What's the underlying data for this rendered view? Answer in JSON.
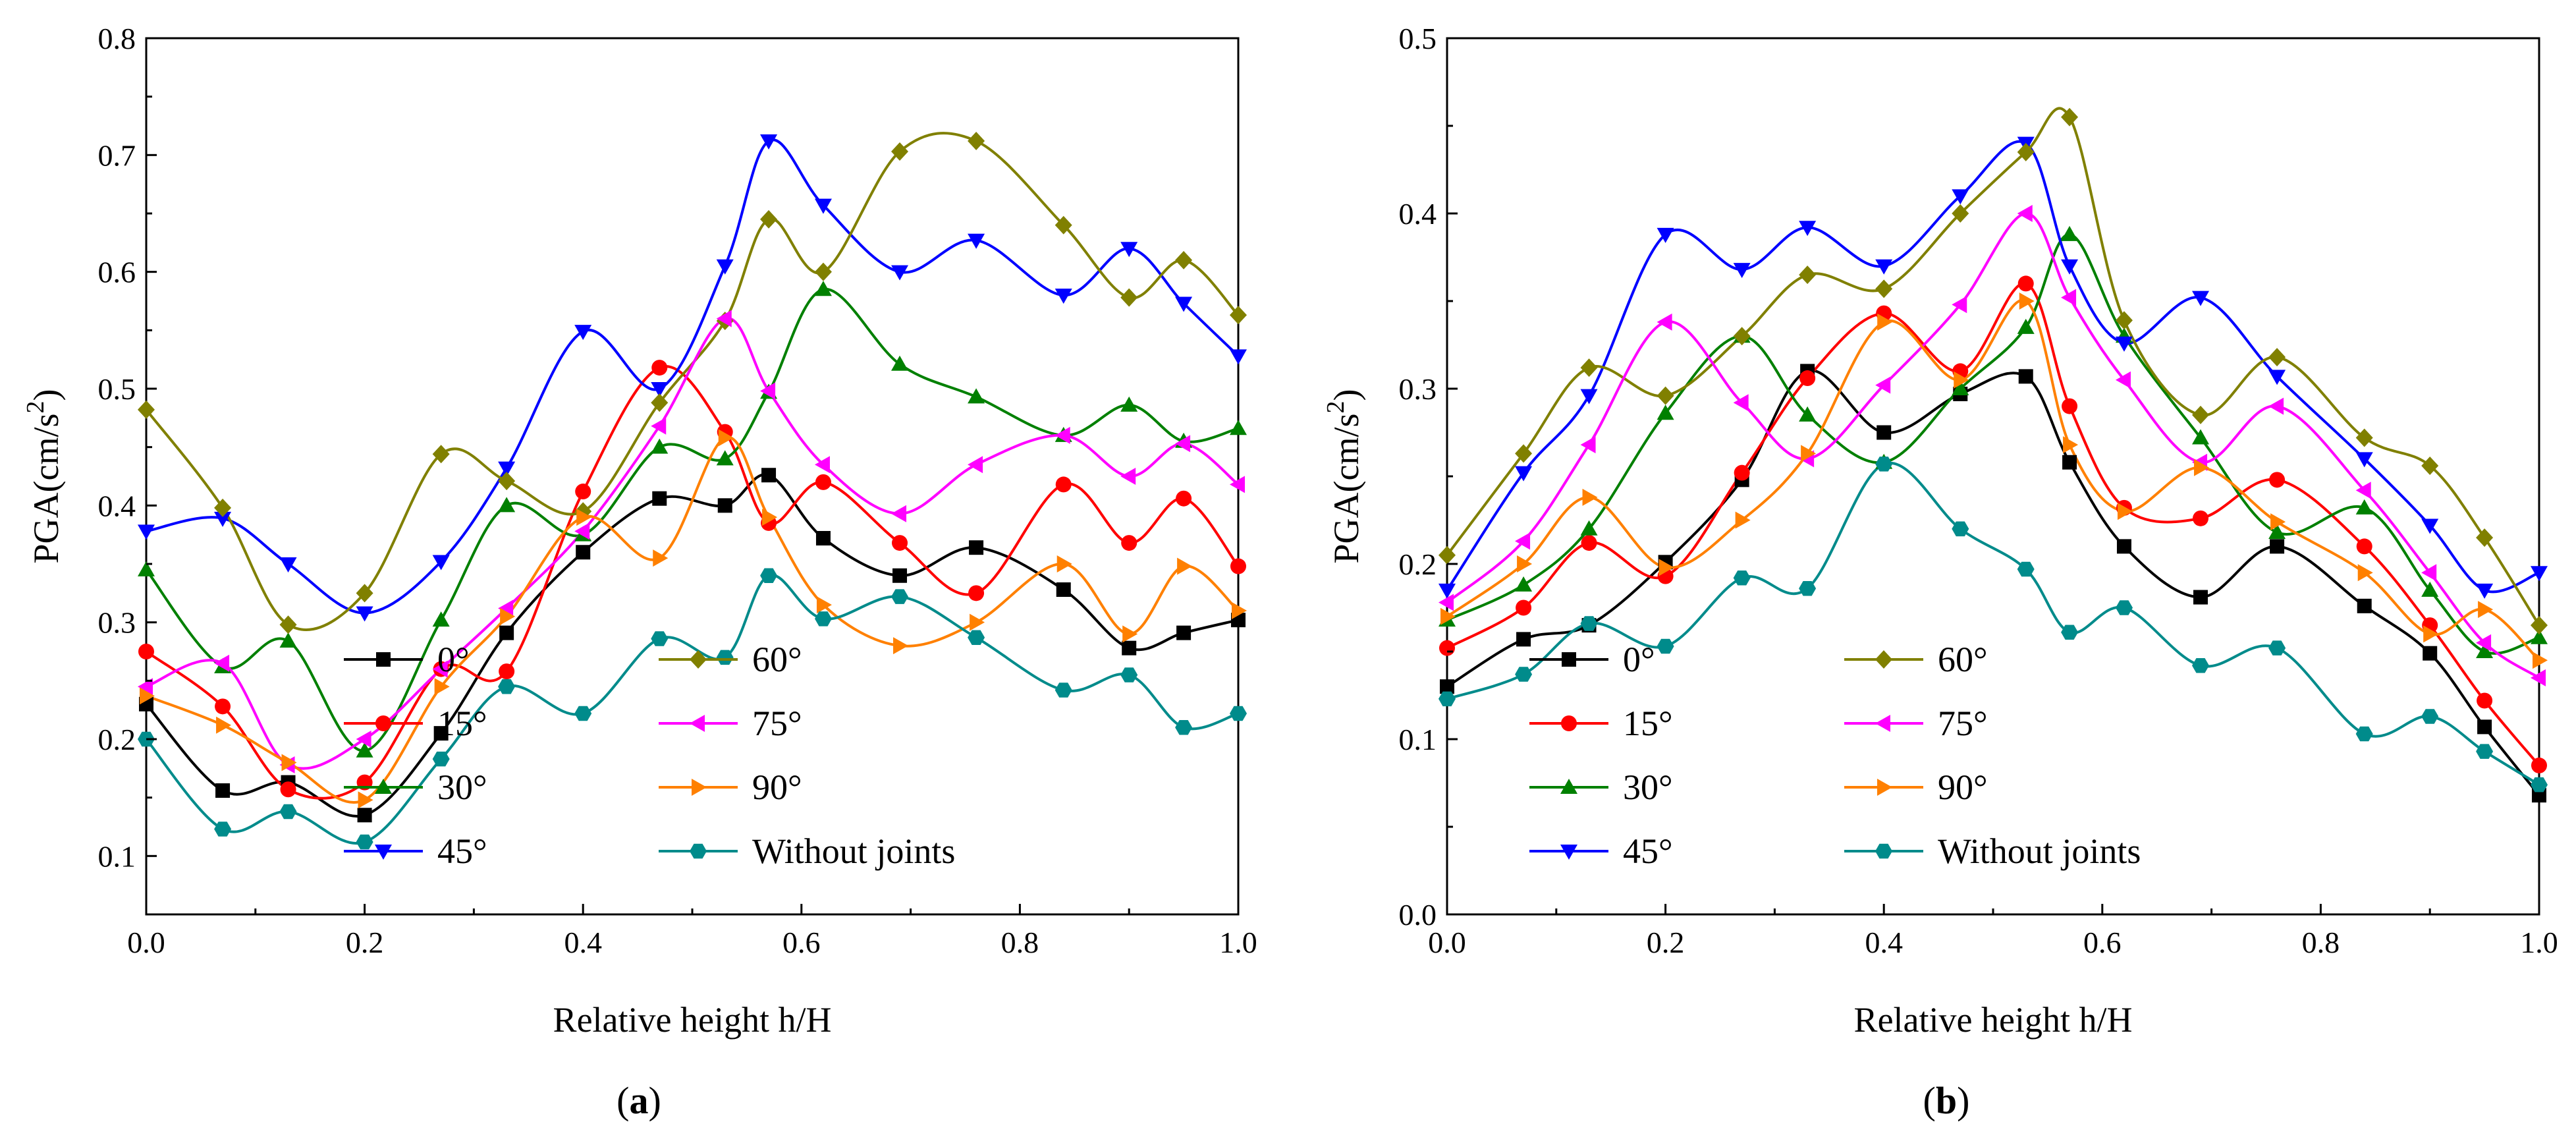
{
  "figure": {
    "panels": [
      {
        "label_prefix": "(",
        "label_letter": "a",
        "label_suffix": ")"
      },
      {
        "label_prefix": "(",
        "label_letter": "b",
        "label_suffix": ")"
      }
    ],
    "ylabel_base": "PGA(cm/s",
    "ylabel_exp": "2",
    "ylabel_close": ")"
  },
  "chart_data": [
    {
      "type": "line",
      "title": "",
      "xlabel": "Relative height h/H",
      "ylabel": "PGA(cm/s2)",
      "xlim": [
        0.0,
        1.0
      ],
      "ylim": [
        0.05,
        0.8
      ],
      "xticks": [
        "0.0",
        "0.2",
        "0.4",
        "0.6",
        "0.8",
        "1.0"
      ],
      "yticks": [
        "0.1",
        "0.2",
        "0.3",
        "0.4",
        "0.5",
        "0.6",
        "0.7",
        "0.8"
      ],
      "legend_position": "bottom-center",
      "x": [
        0.0,
        0.07,
        0.13,
        0.2,
        0.27,
        0.33,
        0.4,
        0.47,
        0.53,
        0.57,
        0.62,
        0.69,
        0.76,
        0.84,
        0.9,
        0.95,
        1.0
      ],
      "series": [
        {
          "name": "0°",
          "color": "#000000",
          "marker": "square",
          "values": [
            0.23,
            0.156,
            0.163,
            0.135,
            0.205,
            0.291,
            0.36,
            0.406,
            0.4,
            0.426,
            0.372,
            0.34,
            0.364,
            0.328,
            0.278,
            0.291,
            0.302
          ]
        },
        {
          "name": "15°",
          "color": "#ff0000",
          "marker": "circle",
          "values": [
            0.275,
            0.228,
            0.157,
            0.163,
            0.26,
            0.258,
            0.412,
            0.518,
            0.463,
            0.385,
            0.42,
            0.368,
            0.325,
            0.418,
            0.368,
            0.406,
            0.348
          ]
        },
        {
          "name": "30°",
          "color": "#008000",
          "marker": "triangle-up",
          "values": [
            0.345,
            0.262,
            0.284,
            0.19,
            0.302,
            0.4,
            0.375,
            0.45,
            0.44,
            0.497,
            0.585,
            0.521,
            0.493,
            0.46,
            0.486,
            0.455,
            0.466
          ]
        },
        {
          "name": "45°",
          "color": "#0000ff",
          "marker": "triangle-down",
          "values": [
            0.378,
            0.389,
            0.35,
            0.308,
            0.352,
            0.432,
            0.549,
            0.5,
            0.605,
            0.712,
            0.657,
            0.6,
            0.627,
            0.58,
            0.62,
            0.573,
            0.528
          ]
        },
        {
          "name": "60°",
          "color": "#808000",
          "marker": "diamond",
          "values": [
            0.482,
            0.398,
            0.298,
            0.325,
            0.444,
            0.421,
            0.395,
            0.488,
            0.558,
            0.645,
            0.6,
            0.703,
            0.712,
            0.64,
            0.578,
            0.61,
            0.563
          ]
        },
        {
          "name": "75°",
          "color": "#ff00ff",
          "marker": "triangle-left",
          "values": [
            0.245,
            0.265,
            0.178,
            0.2,
            0.26,
            0.312,
            0.378,
            0.468,
            0.56,
            0.498,
            0.435,
            0.393,
            0.435,
            0.46,
            0.425,
            0.453,
            0.418
          ]
        },
        {
          "name": "90°",
          "color": "#ff8000",
          "marker": "triangle-right",
          "values": [
            0.237,
            0.212,
            0.18,
            0.148,
            0.245,
            0.305,
            0.39,
            0.355,
            0.458,
            0.39,
            0.315,
            0.28,
            0.3,
            0.35,
            0.29,
            0.348,
            0.31
          ]
        },
        {
          "name": "Without joints",
          "color": "#008b8b",
          "marker": "hexagon",
          "values": [
            0.2,
            0.123,
            0.138,
            0.112,
            0.183,
            0.245,
            0.222,
            0.286,
            0.27,
            0.34,
            0.303,
            0.322,
            0.287,
            0.242,
            0.255,
            0.21,
            0.222
          ]
        }
      ]
    },
    {
      "type": "line",
      "title": "",
      "xlabel": "Relative height h/H",
      "ylabel": "PGA(cm/s2)",
      "xlim": [
        0.0,
        1.0
      ],
      "ylim": [
        0.0,
        0.5
      ],
      "xticks": [
        "0.0",
        "0.2",
        "0.4",
        "0.6",
        "0.8",
        "1.0"
      ],
      "yticks": [
        "0.0",
        "0.1",
        "0.2",
        "0.3",
        "0.4",
        "0.5"
      ],
      "legend_position": "bottom-left",
      "x": [
        0.0,
        0.07,
        0.13,
        0.2,
        0.27,
        0.33,
        0.4,
        0.47,
        0.53,
        0.57,
        0.62,
        0.69,
        0.76,
        0.84,
        0.9,
        0.95,
        1.0
      ],
      "series": [
        {
          "name": "0°",
          "color": "#000000",
          "marker": "square",
          "values": [
            0.13,
            0.157,
            0.165,
            0.201,
            0.248,
            0.31,
            0.275,
            0.297,
            0.307,
            0.258,
            0.21,
            0.181,
            0.21,
            0.176,
            0.149,
            0.107,
            0.068
          ]
        },
        {
          "name": "15°",
          "color": "#ff0000",
          "marker": "circle",
          "values": [
            0.152,
            0.175,
            0.212,
            0.193,
            0.252,
            0.306,
            0.343,
            0.31,
            0.36,
            0.29,
            0.232,
            0.226,
            0.248,
            0.21,
            0.165,
            0.122,
            0.085
          ]
        },
        {
          "name": "30°",
          "color": "#008000",
          "marker": "triangle-up",
          "values": [
            0.168,
            0.188,
            0.22,
            0.286,
            0.33,
            0.285,
            0.258,
            0.3,
            0.335,
            0.388,
            0.33,
            0.272,
            0.218,
            0.232,
            0.185,
            0.15,
            0.158
          ]
        },
        {
          "name": "45°",
          "color": "#0000ff",
          "marker": "triangle-down",
          "values": [
            0.185,
            0.252,
            0.296,
            0.388,
            0.368,
            0.392,
            0.37,
            0.41,
            0.44,
            0.37,
            0.326,
            0.352,
            0.307,
            0.26,
            0.222,
            0.185,
            0.195
          ]
        },
        {
          "name": "60°",
          "color": "#808000",
          "marker": "diamond",
          "values": [
            0.205,
            0.263,
            0.312,
            0.296,
            0.33,
            0.365,
            0.357,
            0.4,
            0.435,
            0.455,
            0.339,
            0.285,
            0.318,
            0.272,
            0.256,
            0.215,
            0.165
          ]
        },
        {
          "name": "75°",
          "color": "#ff00ff",
          "marker": "triangle-left",
          "values": [
            0.178,
            0.213,
            0.268,
            0.338,
            0.292,
            0.26,
            0.302,
            0.348,
            0.4,
            0.352,
            0.305,
            0.258,
            0.29,
            0.242,
            0.195,
            0.155,
            0.135
          ]
        },
        {
          "name": "90°",
          "color": "#ff8000",
          "marker": "triangle-right",
          "values": [
            0.17,
            0.2,
            0.238,
            0.198,
            0.225,
            0.263,
            0.338,
            0.305,
            0.35,
            0.268,
            0.23,
            0.255,
            0.224,
            0.195,
            0.16,
            0.174,
            0.145
          ]
        },
        {
          "name": "Without joints",
          "color": "#008b8b",
          "marker": "hexagon",
          "values": [
            0.123,
            0.137,
            0.166,
            0.153,
            0.192,
            0.186,
            0.257,
            0.22,
            0.197,
            0.161,
            0.175,
            0.142,
            0.152,
            0.103,
            0.113,
            0.093,
            0.074
          ]
        }
      ]
    }
  ]
}
